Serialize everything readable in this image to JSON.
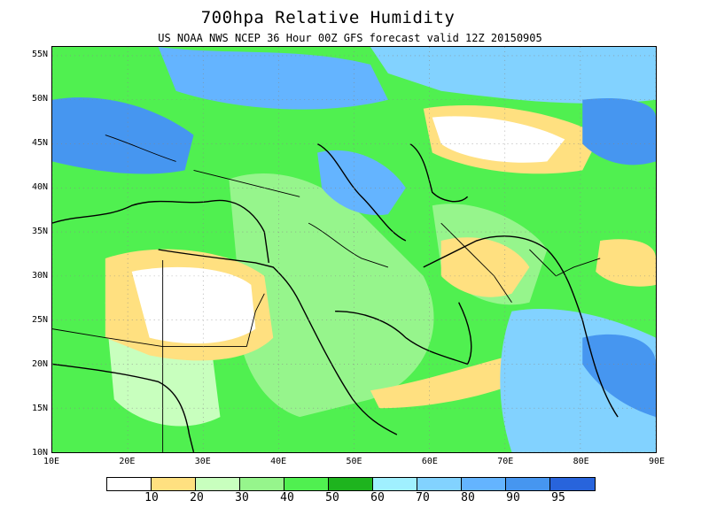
{
  "title": "700hpa Relative Humidity",
  "subtitle": "US NOAA NWS NCEP 36 Hour 00Z GFS forecast valid 12Z 20150905",
  "map": {
    "lon_range": [
      10,
      90
    ],
    "lat_range": [
      10,
      56
    ],
    "lat_labels": [
      "55N",
      "50N",
      "45N",
      "40N",
      "35N",
      "30N",
      "25N",
      "20N",
      "15N",
      "10N"
    ],
    "lat_values": [
      55,
      50,
      45,
      40,
      35,
      30,
      25,
      20,
      15,
      10
    ],
    "lon_labels": [
      "10E",
      "20E",
      "30E",
      "40E",
      "50E",
      "60E",
      "70E",
      "80E",
      "90E"
    ],
    "lon_values": [
      10,
      20,
      30,
      40,
      50,
      60,
      70,
      80,
      90
    ],
    "grid": "dotted",
    "coastline_color": "#000000"
  },
  "colorbar": {
    "colors": [
      "#ffffff",
      "#ffe080",
      "#c8ffbe",
      "#96f58c",
      "#50f050",
      "#1eb41e",
      "#a0f0ff",
      "#82d2ff",
      "#64b4ff",
      "#4696f0",
      "#2864dc"
    ],
    "labels": [
      "10",
      "20",
      "30",
      "40",
      "50",
      "60",
      "70",
      "80",
      "90",
      "95"
    ]
  }
}
